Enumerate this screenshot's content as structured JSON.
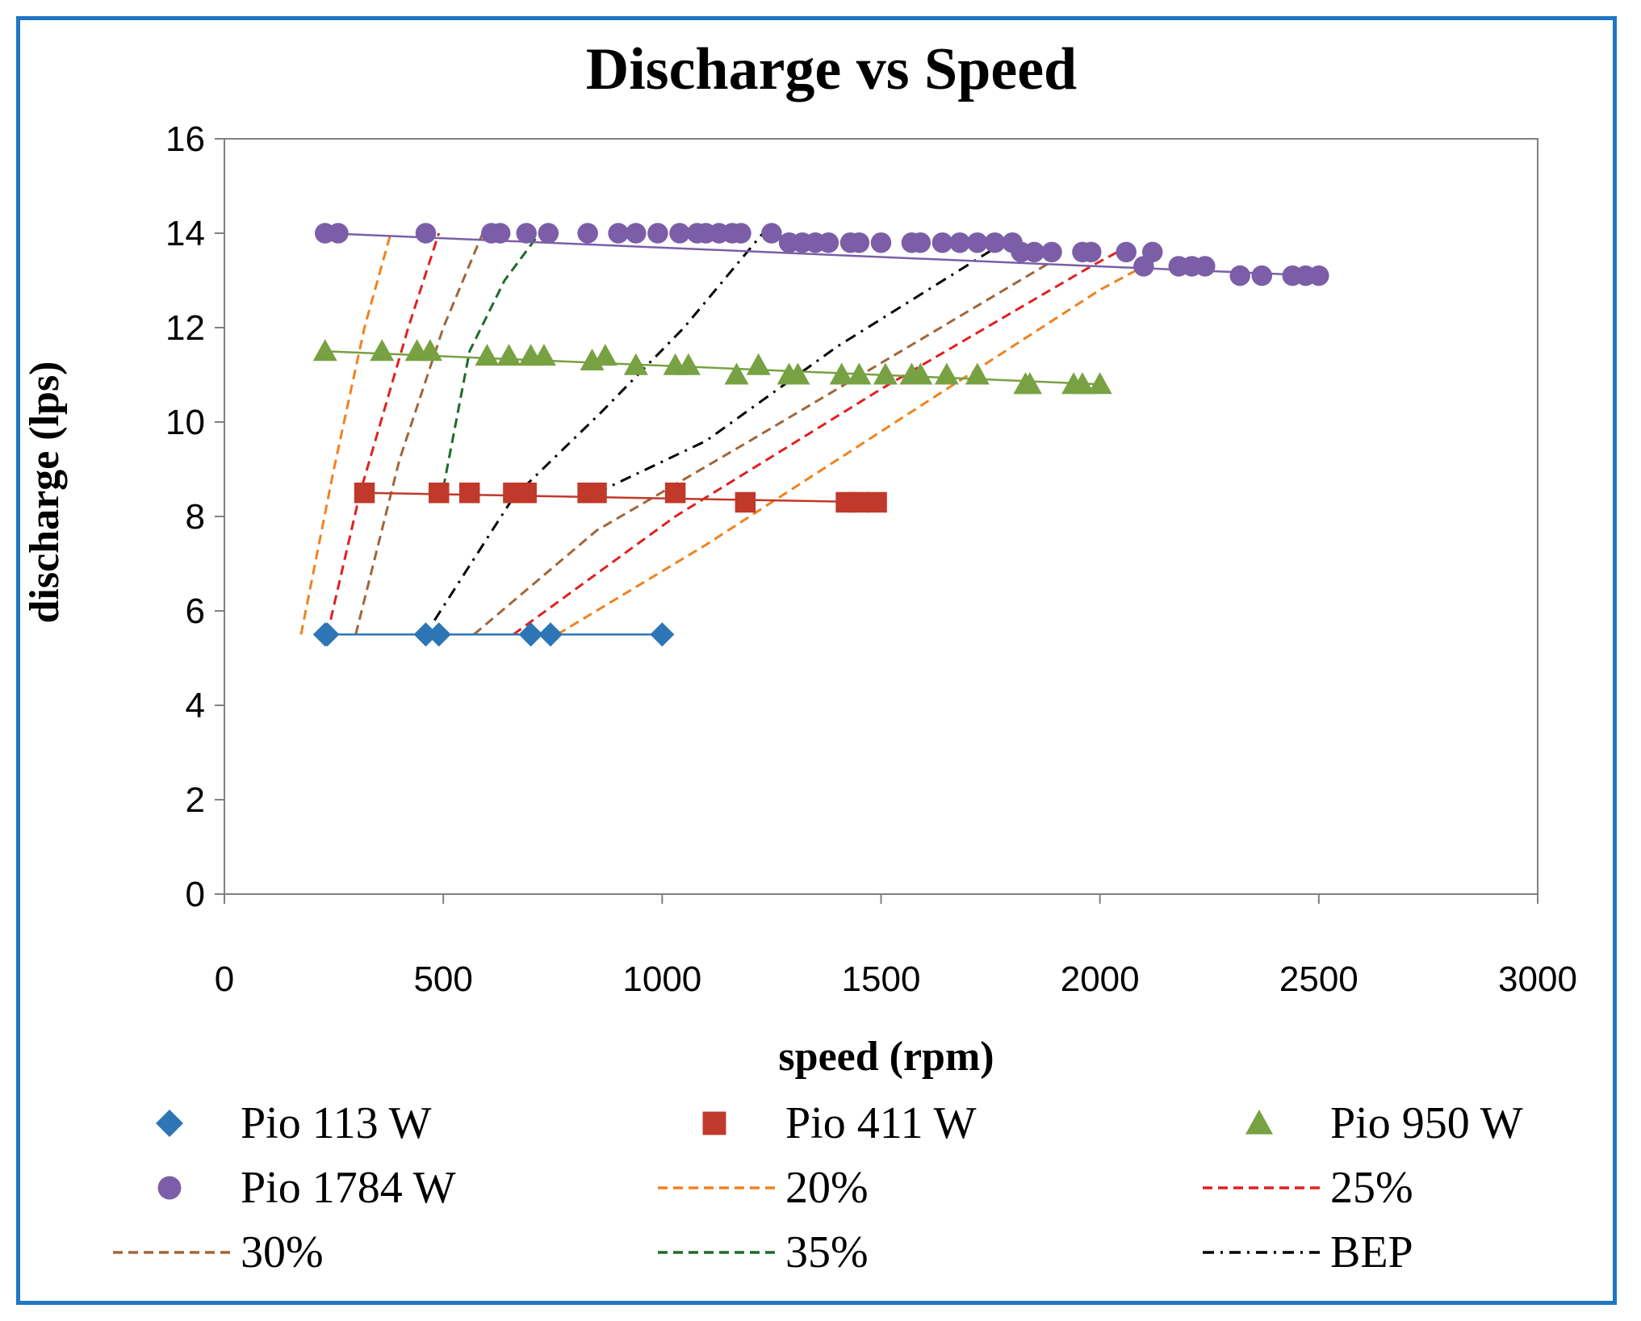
{
  "chart_data": {
    "type": "scatter",
    "title": "Discharge vs Speed",
    "xlabel": "speed (rpm)",
    "ylabel": "discharge (lps)",
    "xlim": [
      0,
      3000
    ],
    "ylim": [
      0,
      16
    ],
    "xticks": [
      0,
      500,
      1000,
      1500,
      2000,
      2500,
      3000
    ],
    "yticks": [
      0,
      2,
      4,
      6,
      8,
      10,
      12,
      14,
      16
    ],
    "grid": false,
    "legend_position": "bottom",
    "series": [
      {
        "name": "Pio 113 W",
        "marker": "diamond",
        "color": "#2e75b6",
        "line": "solid",
        "x": [
          230,
          235,
          460,
          490,
          700,
          745,
          1000
        ],
        "y": [
          5.5,
          5.5,
          5.5,
          5.5,
          5.5,
          5.5,
          5.5
        ]
      },
      {
        "name": "Pio 411 W",
        "marker": "square",
        "color": "#c0392b",
        "line": "solid",
        "x": [
          320,
          490,
          560,
          660,
          690,
          830,
          850,
          1030,
          1190,
          1420,
          1450,
          1490
        ],
        "y": [
          8.5,
          8.5,
          8.5,
          8.5,
          8.5,
          8.5,
          8.5,
          8.5,
          8.3,
          8.3,
          8.3,
          8.3
        ]
      },
      {
        "name": "Pio 950 W",
        "marker": "triangle",
        "color": "#77a142",
        "line": "solid",
        "x": [
          230,
          360,
          440,
          470,
          600,
          650,
          700,
          730,
          840,
          870,
          940,
          1030,
          1060,
          1170,
          1220,
          1290,
          1310,
          1410,
          1450,
          1510,
          1570,
          1590,
          1650,
          1720,
          1830,
          1840,
          1940,
          1960,
          2000
        ],
        "y": [
          11.5,
          11.5,
          11.5,
          11.5,
          11.4,
          11.4,
          11.4,
          11.4,
          11.3,
          11.4,
          11.2,
          11.2,
          11.2,
          11.0,
          11.2,
          11.0,
          11.0,
          11.0,
          11.0,
          11.0,
          11.0,
          11.0,
          11.0,
          11.0,
          10.8,
          10.8,
          10.8,
          10.8,
          10.8
        ]
      },
      {
        "name": "Pio 1784 W",
        "marker": "circle",
        "color": "#7b5ea7",
        "line": "solid",
        "x": [
          230,
          260,
          460,
          610,
          630,
          690,
          740,
          830,
          900,
          940,
          990,
          1040,
          1080,
          1100,
          1130,
          1160,
          1180,
          1250,
          1290,
          1320,
          1350,
          1380,
          1430,
          1450,
          1500,
          1570,
          1590,
          1640,
          1680,
          1720,
          1760,
          1800,
          1820,
          1850,
          1890,
          1960,
          1980,
          2060,
          2100,
          2120,
          2180,
          2210,
          2240,
          2320,
          2370,
          2440,
          2470,
          2500
        ],
        "y": [
          14.0,
          14.0,
          14.0,
          14.0,
          14.0,
          14.0,
          14.0,
          14.0,
          14.0,
          14.0,
          14.0,
          14.0,
          14.0,
          14.0,
          14.0,
          14.0,
          14.0,
          14.0,
          13.8,
          13.8,
          13.8,
          13.8,
          13.8,
          13.8,
          13.8,
          13.8,
          13.8,
          13.8,
          13.8,
          13.8,
          13.8,
          13.8,
          13.6,
          13.6,
          13.6,
          13.6,
          13.6,
          13.6,
          13.3,
          13.6,
          13.3,
          13.3,
          13.3,
          13.1,
          13.1,
          13.1,
          13.1,
          13.1
        ]
      }
    ],
    "efficiency_lines": [
      {
        "name": "20%",
        "color": "#f0821e",
        "dash": "dashed",
        "x": [
          175,
          250,
          320,
          380
        ],
        "y": [
          5.5,
          9.0,
          12.0,
          14.0
        ]
      },
      {
        "name": "20%",
        "color": "#f0821e",
        "dash": "dashed",
        "x": [
          760,
          1100,
          1500,
          2000,
          2080
        ],
        "y": [
          5.5,
          7.4,
          9.8,
          12.8,
          13.2
        ]
      },
      {
        "name": "25%",
        "color": "#e02020",
        "dash": "dashed",
        "x": [
          235,
          310,
          420,
          490
        ],
        "y": [
          5.5,
          8.5,
          12.0,
          14.0
        ]
      },
      {
        "name": "25%",
        "color": "#e02020",
        "dash": "dashed",
        "x": [
          660,
          1030,
          1500,
          1980,
          2040
        ],
        "y": [
          5.5,
          8.0,
          10.7,
          13.3,
          13.6
        ]
      },
      {
        "name": "30%",
        "color": "#a0663a",
        "dash": "dashed",
        "x": [
          300,
          400,
          500,
          590
        ],
        "y": [
          5.5,
          9.2,
          12.0,
          14.0
        ]
      },
      {
        "name": "30%",
        "color": "#a0663a",
        "dash": "dashed",
        "x": [
          570,
          850,
          1200,
          1600,
          1890
        ],
        "y": [
          5.5,
          7.7,
          9.6,
          11.8,
          13.4
        ]
      },
      {
        "name": "35%",
        "color": "#1e6b2a",
        "dash": "dashed",
        "x": [
          500,
          560,
          640,
          720
        ],
        "y": [
          8.6,
          11.5,
          13.0,
          14.0
        ]
      },
      {
        "name": "BEP",
        "color": "#000000",
        "dash": "dashdot",
        "x": [
          480,
          660,
          860,
          1050,
          1230
        ],
        "y": [
          5.8,
          8.4,
          10.2,
          12.0,
          14.0
        ]
      },
      {
        "name": "BEP",
        "color": "#000000",
        "dash": "dashdot",
        "x": [
          850,
          1100,
          1400,
          1780
        ],
        "y": [
          8.5,
          9.6,
          11.6,
          13.8
        ]
      }
    ]
  },
  "legend": [
    {
      "label": "Pio 113 W",
      "kind": "marker",
      "marker": "diamond",
      "color": "#2e75b6"
    },
    {
      "label": "Pio 411 W",
      "kind": "marker",
      "marker": "square",
      "color": "#c0392b"
    },
    {
      "label": "Pio 950 W",
      "kind": "marker",
      "marker": "triangle",
      "color": "#77a142"
    },
    {
      "label": "Pio 1784 W",
      "kind": "marker",
      "marker": "circle",
      "color": "#7b5ea7"
    },
    {
      "label": "20%",
      "kind": "line",
      "dash": "dashed",
      "color": "#f0821e"
    },
    {
      "label": "25%",
      "kind": "line",
      "dash": "dashed",
      "color": "#e02020"
    },
    {
      "label": "30%",
      "kind": "line",
      "dash": "dashed",
      "color": "#a0663a"
    },
    {
      "label": "35%",
      "kind": "line",
      "dash": "dashed",
      "color": "#1e6b2a"
    },
    {
      "label": "BEP",
      "kind": "line",
      "dash": "dashdot",
      "color": "#000000"
    }
  ],
  "colors": {
    "frame": "#1f77c4",
    "axis": "#808080"
  }
}
